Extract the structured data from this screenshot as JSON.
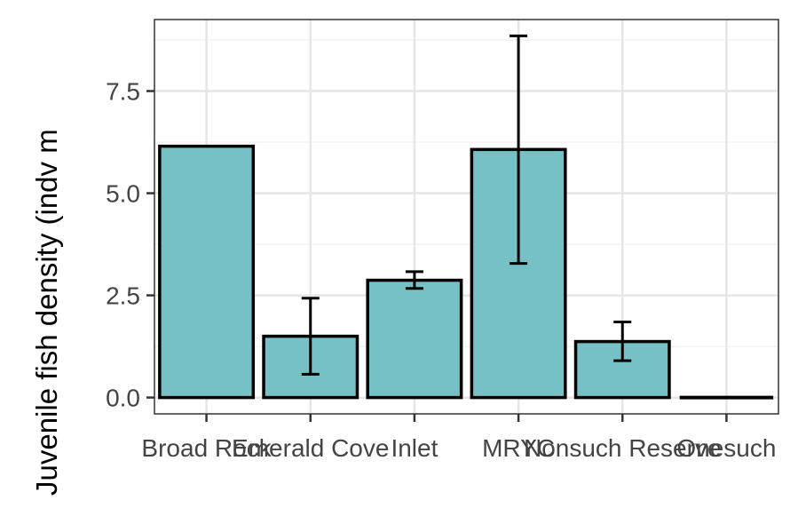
{
  "chart_data": {
    "type": "bar",
    "ylabel": "Juvenile fish density (indv m",
    "categories": [
      "Broad Rock",
      "Emerald Cove",
      "Inlet",
      "MRYC",
      "Nonsuch Reserve",
      "Onesuch"
    ],
    "values": [
      6.15,
      1.5,
      2.87,
      6.07,
      1.37,
      0.0
    ],
    "error_low": [
      null,
      0.57,
      2.67,
      3.28,
      0.9,
      null
    ],
    "error_high": [
      null,
      2.43,
      3.08,
      8.85,
      1.85,
      null
    ],
    "ylim": [
      -0.4,
      9.25
    ],
    "y_ticks": [
      0.0,
      2.5,
      5.0,
      7.5
    ],
    "y_tick_labels": [
      "0.0",
      "2.5",
      "5.0",
      "7.5"
    ],
    "grid": true,
    "legend": "none",
    "colors": {
      "bar_fill": "#76c1c6",
      "bar_stroke": "#000000",
      "grid_major": "#e6e6e6",
      "grid_minor": "#f2f2f2",
      "panel_border": "#333333"
    }
  }
}
